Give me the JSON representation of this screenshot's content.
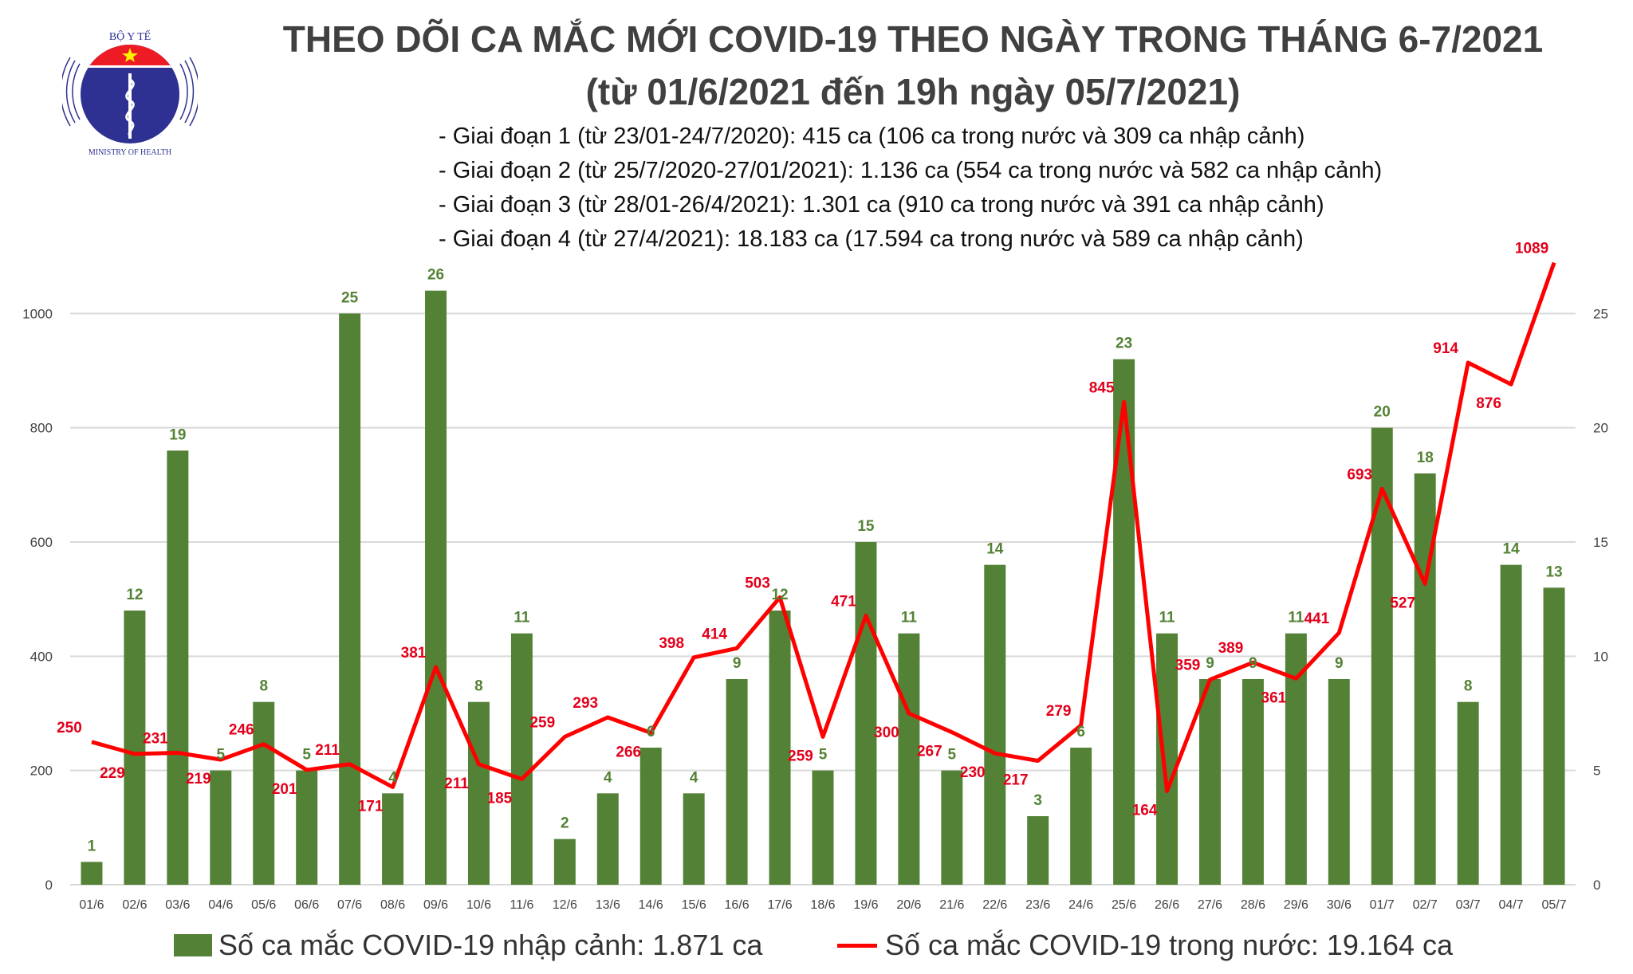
{
  "logo": {
    "text_top": "BỘ Y TẾ",
    "text_bottom": "MINISTRY OF HEALTH"
  },
  "title_line1": "THEO DÕI CA MẮC MỚI COVID-19 THEO NGÀY TRONG THÁNG 6-7/2021",
  "title_line2": "(từ 01/6/2021 đến 19h ngày 05/7/2021)",
  "notes": [
    "- Giai đoạn 1 (từ 23/01-24/7/2020): 415 ca (106 ca trong nước và 309 ca nhập cảnh)",
    "- Giai đoạn 2 (từ 25/7/2020-27/01/2021): 1.136 ca (554 ca trong nước và 582 ca nhập cảnh)",
    "- Giai đoạn 3 (từ 28/01-26/4/2021): 1.301 ca (910 ca trong nước và 391 ca nhập cảnh)",
    "- Giai đoạn 4 (từ 27/4/2021): 18.183 ca (17.594 ca trong nước và 589 ca nhập cảnh)"
  ],
  "legend": {
    "bar": "Số ca mắc COVID-19 nhập cảnh: 1.871 ca",
    "line": "Số ca mắc COVID-19 trong nước: 19.164 ca"
  },
  "chart_data": {
    "type": "bar+line",
    "categories": [
      "01/6",
      "02/6",
      "03/6",
      "04/6",
      "05/6",
      "06/6",
      "07/6",
      "08/6",
      "09/6",
      "10/6",
      "11/6",
      "12/6",
      "13/6",
      "14/6",
      "15/6",
      "16/6",
      "17/6",
      "18/6",
      "19/6",
      "20/6",
      "21/6",
      "22/6",
      "23/6",
      "24/6",
      "25/6",
      "26/6",
      "27/6",
      "28/6",
      "29/6",
      "30/6",
      "01/7",
      "02/7",
      "03/7",
      "04/7",
      "05/7"
    ],
    "series": [
      {
        "name": "Số ca mắc COVID-19 nhập cảnh: 1.871 ca",
        "type": "bar",
        "axis": "right",
        "color": "#538135",
        "values": [
          1,
          12,
          19,
          5,
          8,
          5,
          25,
          4,
          26,
          8,
          11,
          2,
          4,
          6,
          4,
          9,
          12,
          5,
          15,
          11,
          5,
          14,
          3,
          6,
          23,
          11,
          9,
          9,
          11,
          9,
          20,
          18,
          8,
          14,
          13
        ]
      },
      {
        "name": "Số ca mắc COVID-19 trong nước: 19.164 ca",
        "type": "line",
        "axis": "left",
        "color": "#ff0000",
        "values": [
          250,
          229,
          231,
          219,
          246,
          201,
          211,
          171,
          381,
          211,
          185,
          259,
          293,
          266,
          398,
          414,
          503,
          259,
          471,
          300,
          267,
          230,
          217,
          279,
          845,
          164,
          359,
          389,
          361,
          441,
          693,
          527,
          914,
          876,
          1089
        ]
      }
    ],
    "left_axis": {
      "ylim": [
        0,
        1200
      ],
      "ticks": [
        0,
        200,
        400,
        600,
        800,
        1000
      ]
    },
    "right_axis": {
      "ylim": [
        0,
        30
      ],
      "ticks": [
        0,
        5,
        10,
        15,
        20,
        25
      ]
    },
    "grid": true,
    "legend_position": "bottom"
  }
}
